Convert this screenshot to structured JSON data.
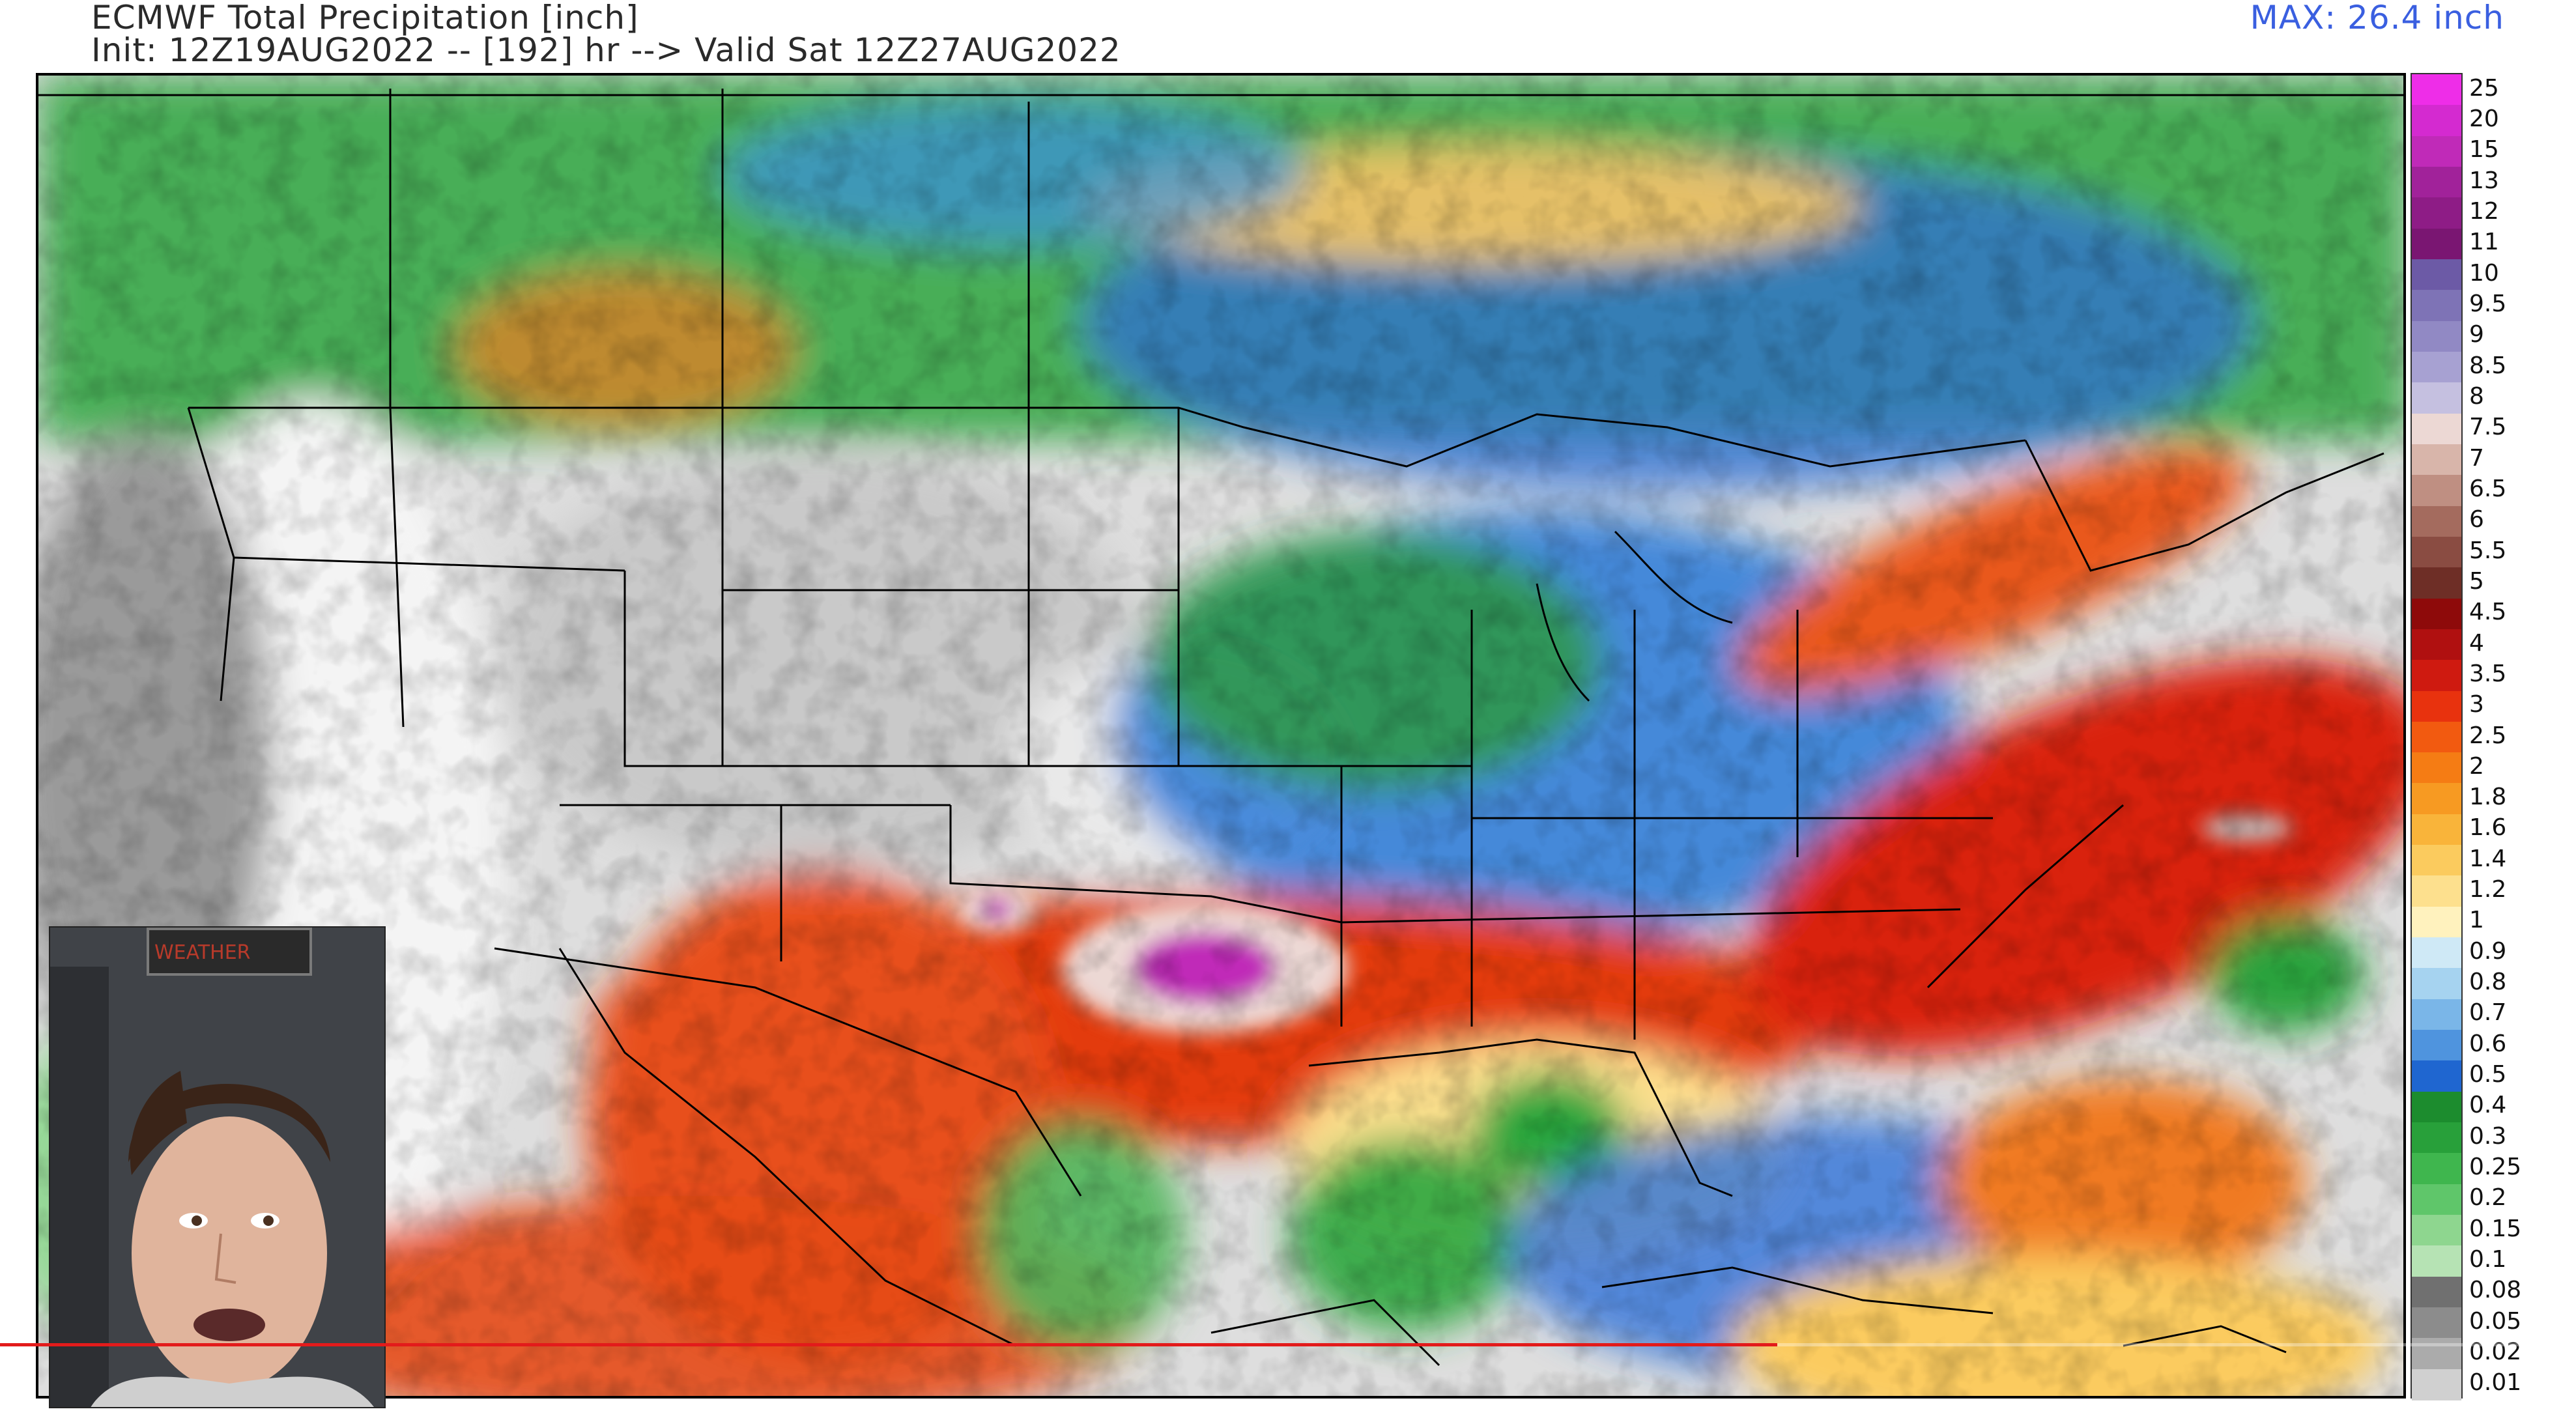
{
  "title": {
    "line1": "ECMWF Total Precipitation [inch]",
    "line2": "Init: 12Z19AUG2022 -- [192] hr --> Valid Sat 12Z27AUG2022",
    "max_label": "MAX: 26.4 inch"
  },
  "colorbar": {
    "labels": [
      "25",
      "20",
      "15",
      "13",
      "12",
      "11",
      "10",
      "9.5",
      "9",
      "8.5",
      "8",
      "7.5",
      "7",
      "6.5",
      "6",
      "5.5",
      "5",
      "4.5",
      "4",
      "3.5",
      "3",
      "2.5",
      "2",
      "1.8",
      "1.6",
      "1.4",
      "1.2",
      "1",
      "0.9",
      "0.8",
      "0.7",
      "0.6",
      "0.5",
      "0.4",
      "0.3",
      "0.25",
      "0.2",
      "0.15",
      "0.1",
      "0.08",
      "0.05",
      "0.02",
      "0.01"
    ],
    "colors": [
      "#ee2de8",
      "#d42ad0",
      "#c02ab8",
      "#a1229a",
      "#8e1c86",
      "#7a1672",
      "#6c5aa6",
      "#7e73b6",
      "#9189c4",
      "#a7a1d2",
      "#c5c0e0",
      "#ecd8d4",
      "#d8b5aa",
      "#bf8f82",
      "#a46b5e",
      "#8a4c42",
      "#6e2e26",
      "#8e0a0a",
      "#b01010",
      "#cf1a10",
      "#e8320e",
      "#f25a10",
      "#f57c14",
      "#f79a22",
      "#f9b43a",
      "#fbcb5e",
      "#fde08e",
      "#fff2be",
      "#cfe9f6",
      "#a6d3f0",
      "#7ab6e8",
      "#4f94de",
      "#1f66d0",
      "#1c8c2e",
      "#28a03a",
      "#3fb64e",
      "#5fc66a",
      "#8ed68f",
      "#b6e3b4",
      "#707070",
      "#8c8c8c",
      "#ababab",
      "#d0d0d0"
    ]
  },
  "webcam": {
    "sign_text": "WEATHER"
  },
  "video": {
    "progress": 0.69
  }
}
